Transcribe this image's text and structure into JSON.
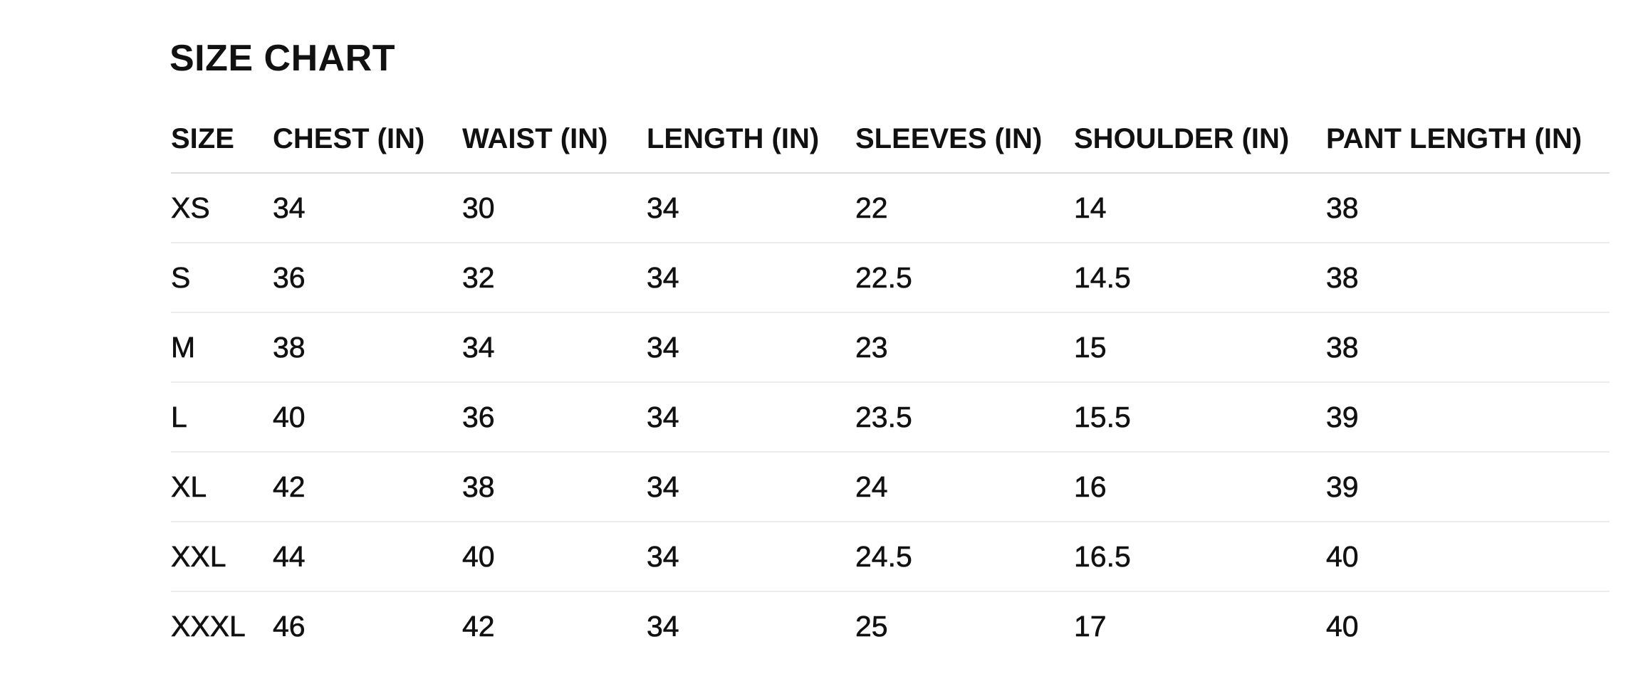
{
  "title": "SIZE CHART",
  "columns": [
    "SIZE",
    "CHEST (IN)",
    "WAIST (IN)",
    "LENGTH (IN)",
    "SLEEVES (IN)",
    "SHOULDER (IN)",
    "PANT LENGTH (IN)"
  ],
  "rows": [
    [
      "XS",
      "34",
      "30",
      "34",
      "22",
      "14",
      "38"
    ],
    [
      "S",
      "36",
      "32",
      "34",
      "22.5",
      "14.5",
      "38"
    ],
    [
      "M",
      "38",
      "34",
      "34",
      "23",
      "15",
      "38"
    ],
    [
      "L",
      "40",
      "36",
      "34",
      "23.5",
      "15.5",
      "39"
    ],
    [
      "XL",
      "42",
      "38",
      "34",
      "24",
      "16",
      "39"
    ],
    [
      "XXL",
      "44",
      "40",
      "34",
      "24.5",
      "16.5",
      "40"
    ],
    [
      "XXXL",
      "46",
      "42",
      "34",
      "25",
      "17",
      "40"
    ]
  ]
}
